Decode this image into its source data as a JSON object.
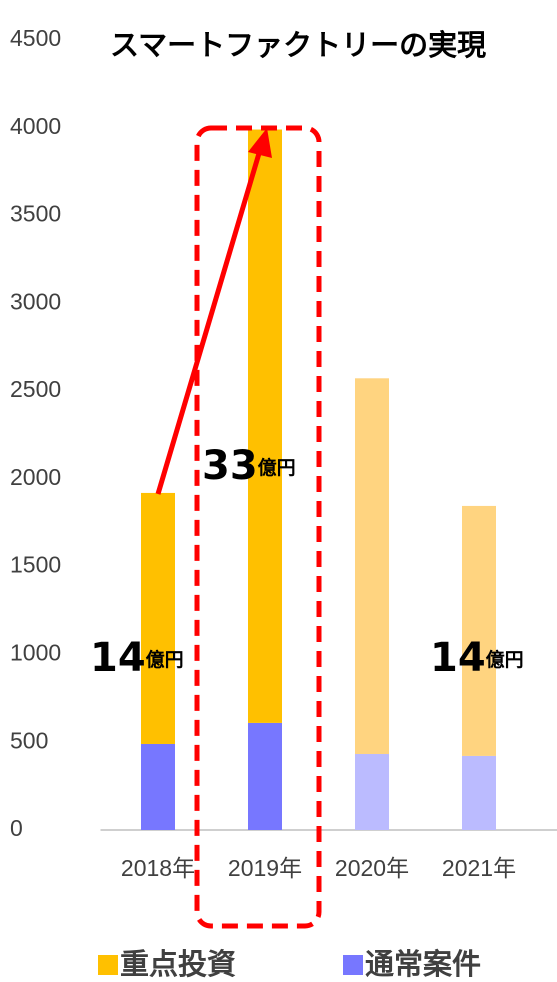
{
  "chart_data": {
    "type": "stacked_bar",
    "title": "スマートファクトリーの実現",
    "categories": [
      "2018年",
      "2019年",
      "2020年",
      "2021年"
    ],
    "series": [
      {
        "name": "重点投資",
        "color": "#FFC000",
        "colors": [
          "#FFC000",
          "#FFC000",
          "#FFD480",
          "#FFD480"
        ],
        "values": [
          1430,
          3380,
          2140,
          1424
        ]
      },
      {
        "name": "通常案件",
        "color": "#7777FF",
        "colors": [
          "#7777FF",
          "#7777FF",
          "#BBBBFF",
          "#BBBBFF"
        ],
        "values": [
          490,
          610,
          433,
          422
        ]
      }
    ],
    "ylim": [
      0,
      4500
    ],
    "yticks": [
      0,
      500,
      1000,
      1500,
      2000,
      2500,
      3000,
      3500,
      4000,
      4500
    ],
    "grid": false,
    "legend": "bottom",
    "annotations": [
      {
        "number": "14",
        "unit": "億円"
      },
      {
        "number": "33",
        "unit": "億円"
      },
      {
        "number": "14",
        "unit": "億円"
      }
    ]
  }
}
